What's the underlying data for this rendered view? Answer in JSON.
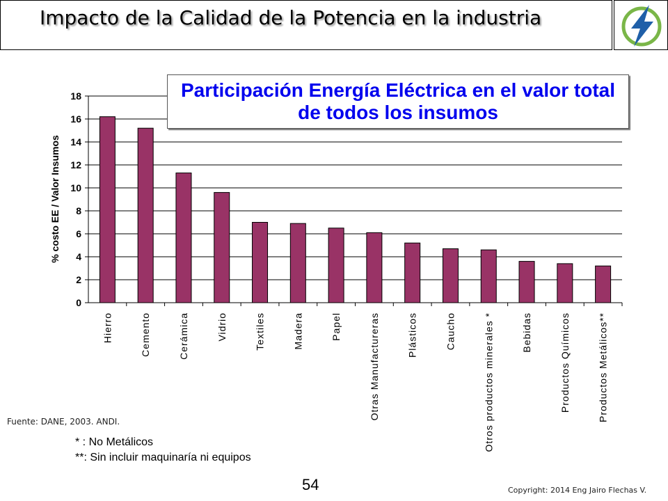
{
  "slide": {
    "title": "Impacto de la Calidad de la Potencia en la industria",
    "logo_icon": "lightning-bolt-icon",
    "source": "Fuente: DANE, 2003. ANDI.",
    "note_1": "*  :  No Metálicos",
    "note_2": "**:  Sin incluir maquinaría ni equipos",
    "page_number": "54",
    "copyright": "Copyright: 2014 Eng Jairo Flechas V."
  },
  "colors": {
    "bar": "#993366",
    "chart_title": "#0000ee",
    "logo_circle": "#7ab648",
    "logo_bolt": "#1f5fa8"
  },
  "chart_data": {
    "type": "bar",
    "title": "Participación Energía Eléctrica en el valor total de todos los insumos",
    "xlabel": "",
    "ylabel": "% costo EE / Valor Insumos",
    "ylim": [
      0,
      18
    ],
    "yticks": [
      0,
      2,
      4,
      6,
      8,
      10,
      12,
      14,
      16,
      18
    ],
    "grid": true,
    "categories": [
      "Hierro",
      "Cemento",
      "Cerámica",
      "Vidrio",
      "Textiles",
      "Madera",
      "Papel",
      "Otras  Manufactureras",
      "Plásticos",
      "Caucho",
      "Otros productos minerales *",
      "Bebidas",
      "Productos Químicos",
      "Productos Metálicos**"
    ],
    "values": [
      16.2,
      15.2,
      11.3,
      9.6,
      7.0,
      6.9,
      6.5,
      6.1,
      5.2,
      4.7,
      4.6,
      3.6,
      3.4,
      3.2
    ]
  }
}
